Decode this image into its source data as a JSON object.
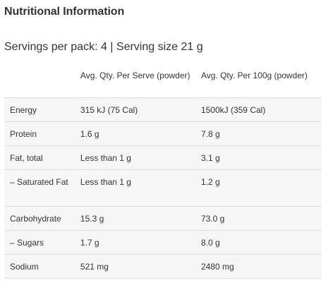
{
  "title": "Nutritional Information",
  "servings": "Servings per pack: 4 | Serving size 21 g",
  "table": {
    "headers": [
      "",
      "Avg. Qty. Per Serve (powder)",
      "Avg. Qty. Per 100g (powder)"
    ],
    "rows": [
      {
        "nutrient": "Energy",
        "per_serve": "315 kJ (75 Cal)",
        "per_100g": "1500kJ (359 Cal)"
      },
      {
        "nutrient": "Protein",
        "per_serve": "1.6 g",
        "per_100g": "7.8 g"
      },
      {
        "nutrient": "Fat, total",
        "per_serve": "Less than 1 g",
        "per_100g": "3.1 g"
      },
      {
        "nutrient": "– Saturated Fat",
        "per_serve": "Less than 1 g",
        "per_100g": "1.2 g"
      },
      {
        "nutrient": "Carbohydrate",
        "per_serve": "15.3 g",
        "per_100g": "73.0 g"
      },
      {
        "nutrient": "– Sugars",
        "per_serve": "1.7 g",
        "per_100g": "8.0 g"
      },
      {
        "nutrient": "Sodium",
        "per_serve": "521 mg",
        "per_100g": "2480 mg"
      }
    ]
  }
}
